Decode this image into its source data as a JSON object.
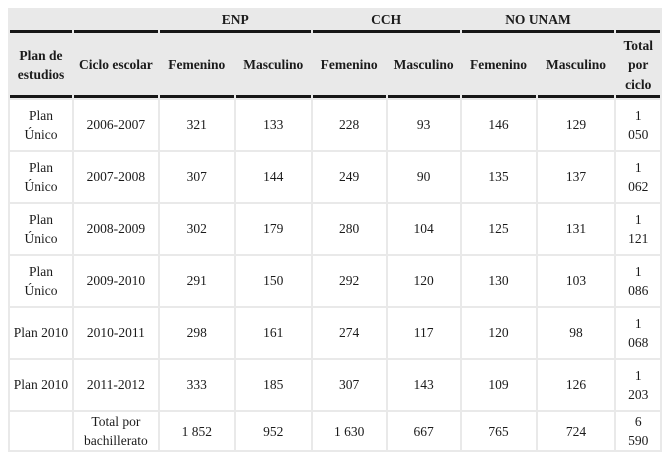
{
  "colors": {
    "header_background": "#e9e9e9",
    "grid_line": "#e9e9e9",
    "heavy_rule": "#161616",
    "text": "#1b1b1b",
    "body_background": "#ffffff"
  },
  "table": {
    "group_header": {
      "enp": "ENP",
      "cch": "CCH",
      "no_unam": "NO UNAM"
    },
    "column_headers": {
      "plan": "Plan de estudios",
      "ciclo": "Ciclo escolar",
      "femenino_enp": "Femenino",
      "masculino_enp": "Masculino",
      "femenino_cch": "Femenino",
      "masculino_cch": "Masculino",
      "femenino_no_unam": "Femenino",
      "masculino_no_unam": "Masculino",
      "total": "Total por ciclo"
    },
    "rows": [
      [
        "Plan Único",
        "2006-2007",
        "321",
        "133",
        "228",
        "93",
        "146",
        "129",
        "1 050"
      ],
      [
        "Plan Único",
        "2007-2008",
        "307",
        "144",
        "249",
        "90",
        "135",
        "137",
        "1 062"
      ],
      [
        "Plan Único",
        "2008-2009",
        "302",
        "179",
        "280",
        "104",
        "125",
        "131",
        "1 121"
      ],
      [
        "Plan Único",
        "2009-2010",
        "291",
        "150",
        "292",
        "120",
        "130",
        "103",
        "1 086"
      ],
      [
        "Plan 2010",
        "2010-2011",
        "298",
        "161",
        "274",
        "117",
        "120",
        "98",
        "1 068"
      ],
      [
        "Plan 2010",
        "2011-2012",
        "333",
        "185",
        "307",
        "143",
        "109",
        "126",
        "1 203"
      ]
    ],
    "total_row": [
      "",
      "Total por bachillerato",
      "1 852",
      "952",
      "1 630",
      "667",
      "765",
      "724",
      "6 590"
    ]
  }
}
